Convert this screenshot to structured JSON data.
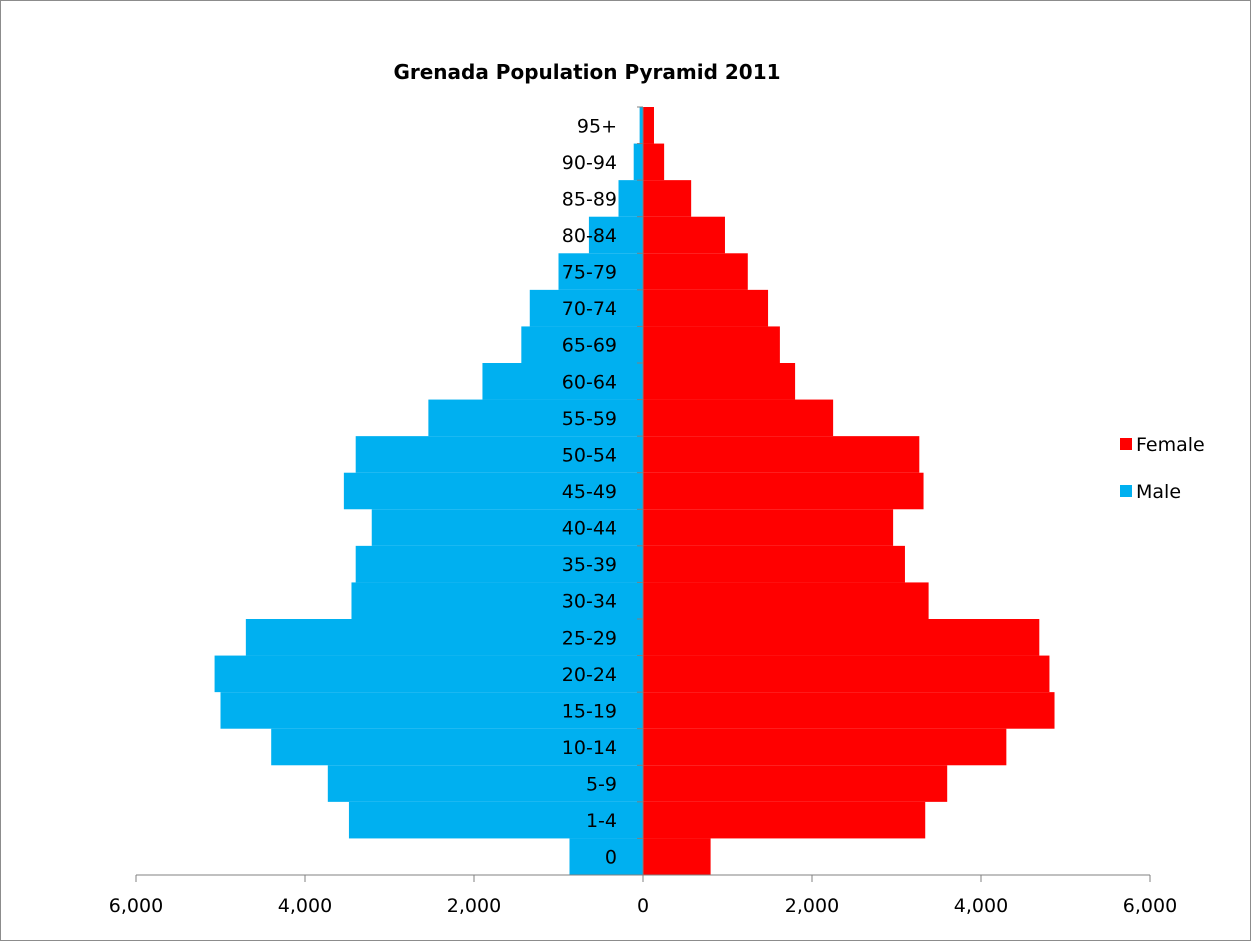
{
  "chart_data": {
    "type": "bar",
    "orientation": "horizontal",
    "title": "Grenada Population Pyramid  2011",
    "categories": [
      "0",
      "1-4",
      "5-9",
      "10-14",
      "15-19",
      "20-24",
      "25-29",
      "30-34",
      "35-39",
      "40-44",
      "45-49",
      "50-54",
      "55-59",
      "60-64",
      "65-69",
      "70-74",
      "75-79",
      "80-84",
      "85-89",
      "90-94",
      "95+"
    ],
    "series": [
      {
        "name": "Female",
        "color": "#ff0000",
        "values": [
          800,
          3340,
          3600,
          4300,
          4870,
          4810,
          4690,
          3380,
          3100,
          2960,
          3320,
          3270,
          2250,
          1800,
          1620,
          1480,
          1240,
          970,
          570,
          250,
          130
        ]
      },
      {
        "name": "Male",
        "color": "#00b0f0",
        "values": [
          -870,
          -3480,
          -3730,
          -4400,
          -5000,
          -5070,
          -4700,
          -3450,
          -3400,
          -3210,
          -3540,
          -3400,
          -2540,
          -1900,
          -1440,
          -1340,
          -1000,
          -640,
          -290,
          -110,
          -40
        ]
      }
    ],
    "xlim": [
      -6000,
      6000
    ],
    "x_ticks": [
      -6000,
      -4000,
      -2000,
      0,
      2000,
      4000,
      6000
    ],
    "x_tick_labels": [
      "6,000",
      "4,000",
      "2,000",
      "0",
      "2,000",
      "4,000",
      "6,000"
    ],
    "legend": {
      "position": "right",
      "entries": [
        "Female",
        "Male"
      ]
    },
    "grid": false
  }
}
